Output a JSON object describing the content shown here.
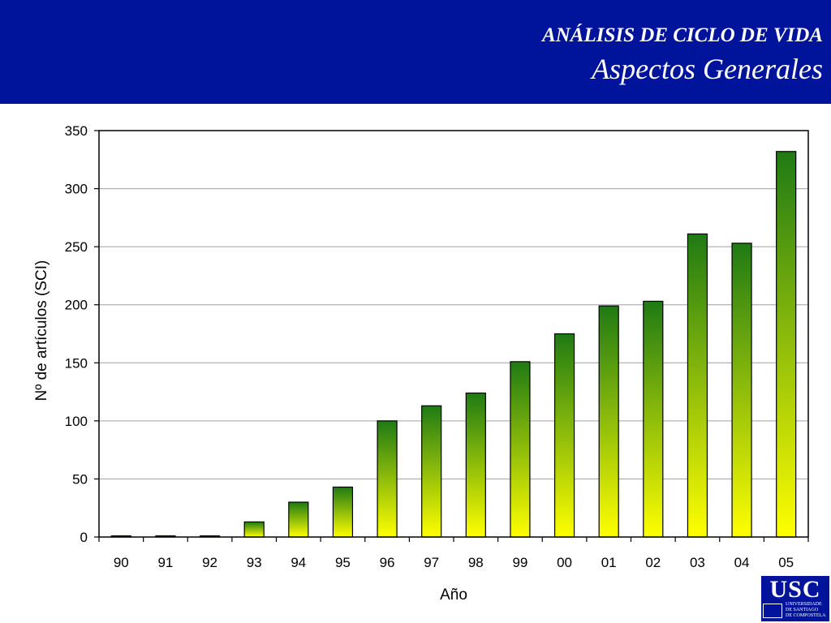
{
  "header": {
    "kicker": "ANÁLISIS DE CICLO DE VIDA",
    "title": "Aspectos Generales"
  },
  "logo": {
    "mark": "USC",
    "lines": [
      "UNIVERSIDADE",
      "DE SANTIAGO",
      "DE COMPOSTELA"
    ]
  },
  "colors": {
    "header_bg": "#00149b",
    "bar_top": "#1f7a14",
    "bar_bottom": "#ffff00",
    "bar_outline": "#000000",
    "gridline": "#a0a0a0"
  },
  "chart_data": {
    "type": "bar",
    "categories": [
      "90",
      "91",
      "92",
      "93",
      "94",
      "95",
      "96",
      "97",
      "98",
      "99",
      "00",
      "01",
      "02",
      "03",
      "04",
      "05"
    ],
    "values": [
      1,
      1,
      1,
      13,
      30,
      43,
      100,
      113,
      124,
      151,
      175,
      199,
      203,
      261,
      253,
      332
    ],
    "title": "",
    "xlabel": "Año",
    "ylabel": "Nº de artículos (SCI)",
    "ylim": [
      0,
      350
    ],
    "yticks": [
      0,
      50,
      100,
      150,
      200,
      250,
      300,
      350
    ],
    "grid": true,
    "legend": "none",
    "fill": "vertical gradient green to yellow"
  }
}
